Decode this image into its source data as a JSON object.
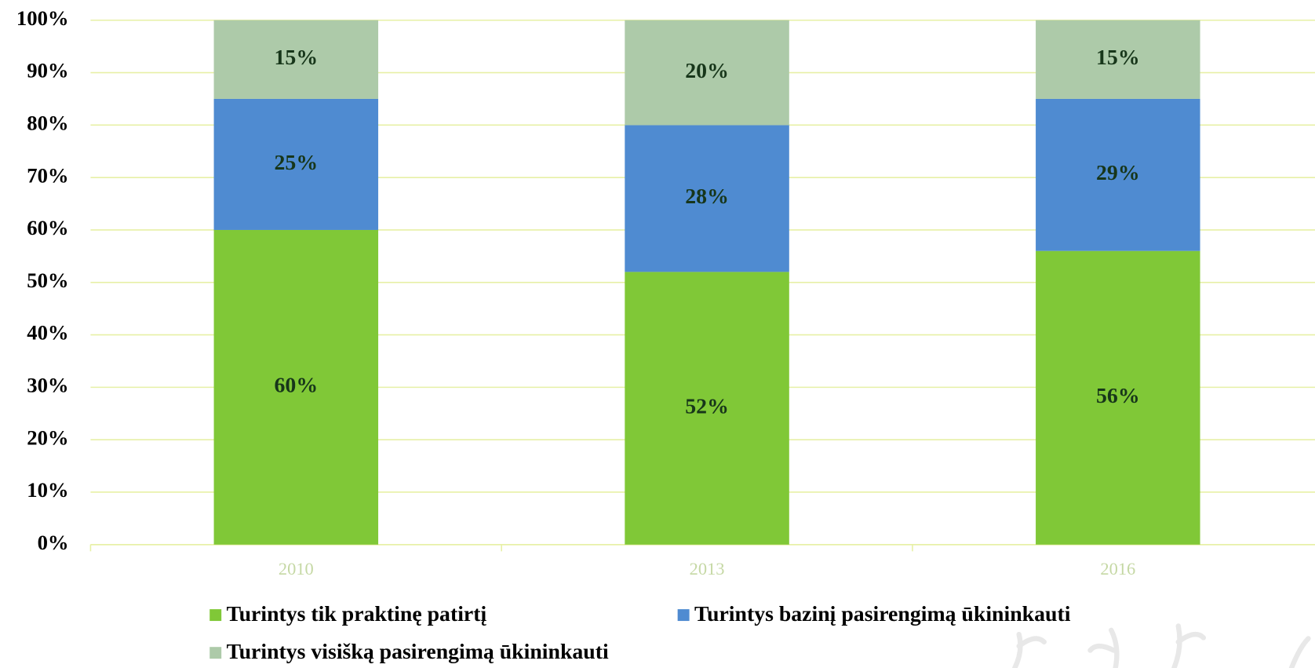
{
  "chart_data": {
    "type": "stacked-bar",
    "categories": [
      "2010",
      "2013",
      "2016"
    ],
    "series": [
      {
        "name": "Turintys tik praktinę patirtį",
        "color": "#80c837",
        "values": [
          60,
          52,
          56
        ],
        "value_labels": [
          "60%",
          "52%",
          "56%"
        ]
      },
      {
        "name": "Turintys bazinį pasirengimą ūkininkauti",
        "color": "#4f8bd1",
        "values": [
          25,
          28,
          29
        ],
        "value_labels": [
          "25%",
          "28%",
          "29%"
        ]
      },
      {
        "name": "Turintys visišką pasirengimą ūkininkauti",
        "color": "#adcaa9",
        "values": [
          15,
          20,
          15
        ],
        "value_labels": [
          "15%",
          "20%",
          "15%"
        ]
      }
    ],
    "ylim": [
      0,
      100
    ],
    "yticks": [
      {
        "value": 0,
        "label": "0%"
      },
      {
        "value": 10,
        "label": "10%"
      },
      {
        "value": 20,
        "label": "20%"
      },
      {
        "value": 30,
        "label": "30%"
      },
      {
        "value": 40,
        "label": "40%"
      },
      {
        "value": 50,
        "label": "50%"
      },
      {
        "value": 60,
        "label": "60%"
      },
      {
        "value": 70,
        "label": "70%"
      },
      {
        "value": 80,
        "label": "80%"
      },
      {
        "value": 90,
        "label": "90%"
      },
      {
        "value": 100,
        "label": "100%"
      }
    ],
    "grid": true
  }
}
